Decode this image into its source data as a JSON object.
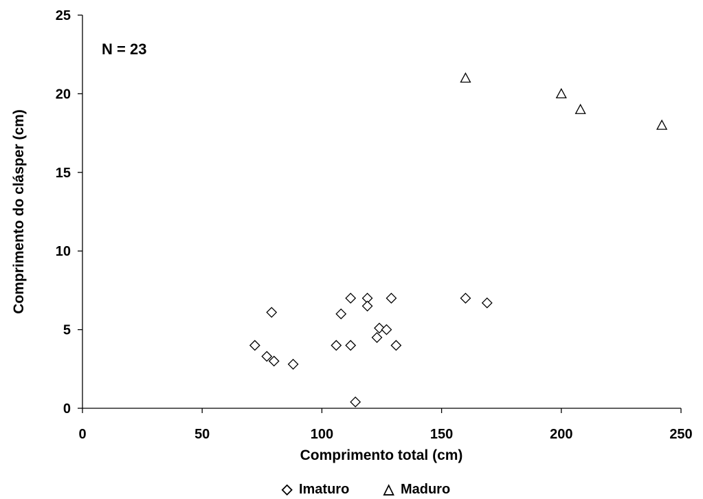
{
  "chart_data": {
    "type": "scatter",
    "title": "",
    "xlabel": "Comprimento total (cm)",
    "ylabel": "Comprimento do clásper (cm)",
    "xlim": [
      0,
      250
    ],
    "ylim": [
      0,
      25
    ],
    "xticks": [
      "0",
      "50",
      "100",
      "150",
      "200",
      "250"
    ],
    "yticks": [
      "0",
      "5",
      "10",
      "15",
      "20",
      "25"
    ],
    "annotation": "N = 23",
    "grid": false,
    "legend_position": "bottom",
    "series": [
      {
        "name": "Imaturo",
        "marker": "diamond",
        "legend_symbol": "◇",
        "points": [
          [
            72,
            4.0
          ],
          [
            77,
            3.3
          ],
          [
            79,
            6.1
          ],
          [
            80,
            3.0
          ],
          [
            88,
            2.8
          ],
          [
            106,
            4.0
          ],
          [
            108,
            6.0
          ],
          [
            112,
            4.0
          ],
          [
            112,
            7.0
          ],
          [
            114,
            0.4
          ],
          [
            119,
            7.0
          ],
          [
            119,
            6.5
          ],
          [
            123,
            4.5
          ],
          [
            124,
            5.1
          ],
          [
            127,
            5.0
          ],
          [
            129,
            7.0
          ],
          [
            131,
            4.0
          ],
          [
            160,
            7.0
          ],
          [
            169,
            6.7
          ]
        ]
      },
      {
        "name": "Maduro",
        "marker": "triangle",
        "legend_symbol": "△",
        "points": [
          [
            160,
            21.0
          ],
          [
            200,
            20.0
          ],
          [
            208,
            19.0
          ],
          [
            242,
            18.0
          ]
        ]
      }
    ]
  }
}
